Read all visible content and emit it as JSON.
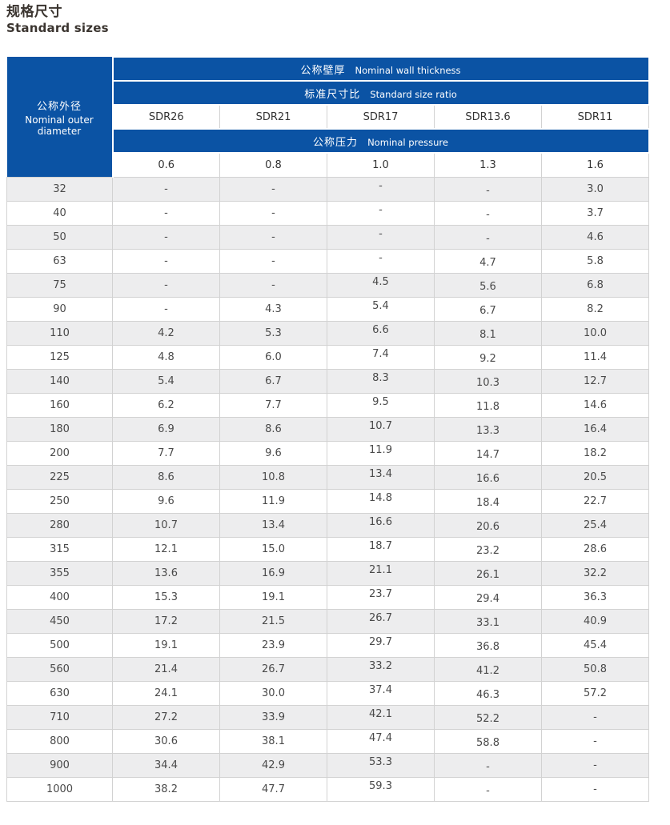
{
  "page_title": {
    "zh": "规格尺寸",
    "en": "Standard sizes"
  },
  "colors": {
    "header_blue": "#0b53a4",
    "row_alt": "#ededee",
    "cell_border": "#d2d2d2",
    "title_text": "#3b3530",
    "data_text": "#4a4a4a"
  },
  "table": {
    "left_header": {
      "zh": "公称外径",
      "en": "Nominal outer diameter"
    },
    "band_wall_thickness": {
      "zh": "公称壁厚",
      "en": "Nominal wall thickness"
    },
    "band_size_ratio": {
      "zh": "标准尺寸比",
      "en": "Standard size ratio"
    },
    "band_pressure": {
      "zh": "公称压力",
      "en": "Nominal pressure"
    },
    "sdr_columns": [
      "SDR26",
      "SDR21",
      "SDR17",
      "SDR13.6",
      "SDR11"
    ],
    "pressures": [
      "0.6",
      "0.8",
      "1.0",
      "1.3",
      "1.6"
    ],
    "rows": [
      {
        "d": "32",
        "v": [
          "-",
          "-",
          "-",
          "-",
          "3.0"
        ]
      },
      {
        "d": "40",
        "v": [
          "-",
          "-",
          "-",
          "-",
          "3.7"
        ]
      },
      {
        "d": "50",
        "v": [
          "-",
          "-",
          "-",
          "-",
          "4.6"
        ]
      },
      {
        "d": "63",
        "v": [
          "-",
          "-",
          "-",
          "4.7",
          "5.8"
        ]
      },
      {
        "d": "75",
        "v": [
          "-",
          "-",
          "4.5",
          "5.6",
          "6.8"
        ]
      },
      {
        "d": "90",
        "v": [
          "-",
          "4.3",
          "5.4",
          "6.7",
          "8.2"
        ]
      },
      {
        "d": "110",
        "v": [
          "4.2",
          "5.3",
          "6.6",
          "8.1",
          "10.0"
        ]
      },
      {
        "d": "125",
        "v": [
          "4.8",
          "6.0",
          "7.4",
          "9.2",
          "11.4"
        ]
      },
      {
        "d": "140",
        "v": [
          "5.4",
          "6.7",
          "8.3",
          "10.3",
          "12.7"
        ]
      },
      {
        "d": "160",
        "v": [
          "6.2",
          "7.7",
          "9.5",
          "11.8",
          "14.6"
        ]
      },
      {
        "d": "180",
        "v": [
          "6.9",
          "8.6",
          "10.7",
          "13.3",
          "16.4"
        ]
      },
      {
        "d": "200",
        "v": [
          "7.7",
          "9.6",
          "11.9",
          "14.7",
          "18.2"
        ]
      },
      {
        "d": "225",
        "v": [
          "8.6",
          "10.8",
          "13.4",
          "16.6",
          "20.5"
        ]
      },
      {
        "d": "250",
        "v": [
          "9.6",
          "11.9",
          "14.8",
          "18.4",
          "22.7"
        ]
      },
      {
        "d": "280",
        "v": [
          "10.7",
          "13.4",
          "16.6",
          "20.6",
          "25.4"
        ]
      },
      {
        "d": "315",
        "v": [
          "12.1",
          "15.0",
          "18.7",
          "23.2",
          "28.6"
        ]
      },
      {
        "d": "355",
        "v": [
          "13.6",
          "16.9",
          "21.1",
          "26.1",
          "32.2"
        ]
      },
      {
        "d": "400",
        "v": [
          "15.3",
          "19.1",
          "23.7",
          "29.4",
          "36.3"
        ]
      },
      {
        "d": "450",
        "v": [
          "17.2",
          "21.5",
          "26.7",
          "33.1",
          "40.9"
        ]
      },
      {
        "d": "500",
        "v": [
          "19.1",
          "23.9",
          "29.7",
          "36.8",
          "45.4"
        ]
      },
      {
        "d": "560",
        "v": [
          "21.4",
          "26.7",
          "33.2",
          "41.2",
          "50.8"
        ]
      },
      {
        "d": "630",
        "v": [
          "24.1",
          "30.0",
          "37.4",
          "46.3",
          "57.2"
        ]
      },
      {
        "d": "710",
        "v": [
          "27.2",
          "33.9",
          "42.1",
          "52.2",
          "-"
        ]
      },
      {
        "d": "800",
        "v": [
          "30.6",
          "38.1",
          "47.4",
          "58.8",
          "-"
        ]
      },
      {
        "d": "900",
        "v": [
          "34.4",
          "42.9",
          "53.3",
          "-",
          "-"
        ]
      },
      {
        "d": "1000",
        "v": [
          "38.2",
          "47.7",
          "59.3",
          "-",
          "-"
        ]
      }
    ]
  }
}
